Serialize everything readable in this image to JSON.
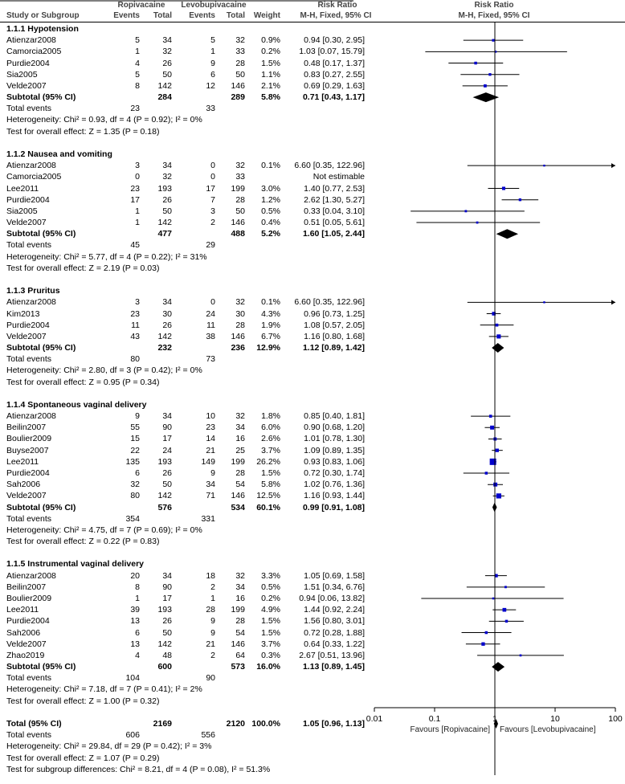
{
  "headers": {
    "group1": "Ropivacaine",
    "group2": "Levobupivacaine",
    "rr_title": "Risk Ratio",
    "plot_title": "Risk Ratio",
    "study": "Study or Subgroup",
    "events1": "Events",
    "total1": "Total",
    "events2": "Events",
    "total2": "Total",
    "weight": "Weight",
    "method": "M-H, Fixed, 95% CI",
    "plot_method": "M-H, Fixed, 95% CI"
  },
  "chart_data": {
    "type": "forest",
    "scale": "log",
    "xlim": [
      0.01,
      100
    ],
    "x_ticks": [
      "0.01",
      "0.1",
      "1",
      "10",
      "100"
    ],
    "x_tick_values": [
      0.01,
      0.1,
      1,
      10,
      100
    ],
    "favours_left": "Favours [Ropivacaine]",
    "favours_right": "Favours [Levobupivacaine]",
    "marker_color": "#0000cc",
    "rows": [
      {
        "kind": "group",
        "label": "1.1.1 Hypotension"
      },
      {
        "kind": "study",
        "label": "Atienzar2008",
        "e1": "5",
        "t1": "34",
        "e2": "5",
        "t2": "32",
        "w": "0.9%",
        "ci": "0.94 [0.30, 2.95]",
        "rr": 0.94,
        "lo": 0.3,
        "hi": 2.95
      },
      {
        "kind": "study",
        "label": "Camorcia2005",
        "e1": "1",
        "t1": "32",
        "e2": "1",
        "t2": "33",
        "w": "0.2%",
        "ci": "1.03 [0.07, 15.79]",
        "rr": 1.03,
        "lo": 0.07,
        "hi": 15.79
      },
      {
        "kind": "study",
        "label": "Purdie2004",
        "e1": "4",
        "t1": "26",
        "e2": "9",
        "t2": "28",
        "w": "1.5%",
        "ci": "0.48 [0.17, 1.37]",
        "rr": 0.48,
        "lo": 0.17,
        "hi": 1.37
      },
      {
        "kind": "study",
        "label": "Sia2005",
        "e1": "5",
        "t1": "50",
        "e2": "6",
        "t2": "50",
        "w": "1.1%",
        "ci": "0.83 [0.27, 2.55]",
        "rr": 0.83,
        "lo": 0.27,
        "hi": 2.55
      },
      {
        "kind": "study",
        "label": "Velde2007",
        "e1": "8",
        "t1": "142",
        "e2": "12",
        "t2": "146",
        "w": "2.1%",
        "ci": "0.69 [0.29, 1.63]",
        "rr": 0.69,
        "lo": 0.29,
        "hi": 1.63
      },
      {
        "kind": "subtotal",
        "label": "Subtotal (95% CI)",
        "t1": "284",
        "t2": "289",
        "w": "5.8%",
        "ci": "0.71 [0.43, 1.17]",
        "rr": 0.71,
        "lo": 0.43,
        "hi": 1.17
      },
      {
        "kind": "events",
        "label": "Total events",
        "e1": "23",
        "e2": "33"
      },
      {
        "kind": "text",
        "label": "Heterogeneity: Chi² = 0.93, df = 4 (P = 0.92); I² = 0%"
      },
      {
        "kind": "text",
        "label": "Test for overall effect: Z = 1.35 (P = 0.18)"
      },
      {
        "kind": "blank"
      },
      {
        "kind": "group",
        "label": "1.1.2 Nausea and vomiting"
      },
      {
        "kind": "study",
        "label": "Atienzar2008",
        "e1": "3",
        "t1": "34",
        "e2": "0",
        "t2": "32",
        "w": "0.1%",
        "ci": "6.60 [0.35, 122.96]",
        "rr": 6.6,
        "lo": 0.35,
        "hi": 122.96
      },
      {
        "kind": "study",
        "label": "Camorcia2005",
        "e1": "0",
        "t1": "32",
        "e2": "0",
        "t2": "33",
        "w": "",
        "ci": "Not estimable"
      },
      {
        "kind": "study",
        "label": "Lee2011",
        "e1": "23",
        "t1": "193",
        "e2": "17",
        "t2": "199",
        "w": "3.0%",
        "ci": "1.40 [0.77, 2.53]",
        "rr": 1.4,
        "lo": 0.77,
        "hi": 2.53
      },
      {
        "kind": "study",
        "label": "Purdie2004",
        "e1": "17",
        "t1": "26",
        "e2": "7",
        "t2": "28",
        "w": "1.2%",
        "ci": "2.62 [1.30, 5.27]",
        "rr": 2.62,
        "lo": 1.3,
        "hi": 5.27
      },
      {
        "kind": "study",
        "label": "Sia2005",
        "e1": "1",
        "t1": "50",
        "e2": "3",
        "t2": "50",
        "w": "0.5%",
        "ci": "0.33 [0.04, 3.10]",
        "rr": 0.33,
        "lo": 0.04,
        "hi": 3.1
      },
      {
        "kind": "study",
        "label": "Velde2007",
        "e1": "1",
        "t1": "142",
        "e2": "2",
        "t2": "146",
        "w": "0.4%",
        "ci": "0.51 [0.05, 5.61]",
        "rr": 0.51,
        "lo": 0.05,
        "hi": 5.61
      },
      {
        "kind": "subtotal",
        "label": "Subtotal (95% CI)",
        "t1": "477",
        "t2": "488",
        "w": "5.2%",
        "ci": "1.60 [1.05, 2.44]",
        "rr": 1.6,
        "lo": 1.05,
        "hi": 2.44
      },
      {
        "kind": "events",
        "label": "Total events",
        "e1": "45",
        "e2": "29"
      },
      {
        "kind": "text",
        "label": "Heterogeneity: Chi² = 5.77, df = 4 (P = 0.22); I² = 31%"
      },
      {
        "kind": "text",
        "label": "Test for overall effect: Z = 2.19 (P = 0.03)"
      },
      {
        "kind": "blank"
      },
      {
        "kind": "group",
        "label": "1.1.3 Pruritus"
      },
      {
        "kind": "study",
        "label": "Atienzar2008",
        "e1": "3",
        "t1": "34",
        "e2": "0",
        "t2": "32",
        "w": "0.1%",
        "ci": "6.60 [0.35, 122.96]",
        "rr": 6.6,
        "lo": 0.35,
        "hi": 122.96
      },
      {
        "kind": "study",
        "label": "Kim2013",
        "e1": "23",
        "t1": "30",
        "e2": "24",
        "t2": "30",
        "w": "4.3%",
        "ci": "0.96 [0.73, 1.25]",
        "rr": 0.96,
        "lo": 0.73,
        "hi": 1.25
      },
      {
        "kind": "study",
        "label": "Purdie2004",
        "e1": "11",
        "t1": "26",
        "e2": "11",
        "t2": "28",
        "w": "1.9%",
        "ci": "1.08 [0.57, 2.05]",
        "rr": 1.08,
        "lo": 0.57,
        "hi": 2.05
      },
      {
        "kind": "study",
        "label": "Velde2007",
        "e1": "43",
        "t1": "142",
        "e2": "38",
        "t2": "146",
        "w": "6.7%",
        "ci": "1.16 [0.80, 1.68]",
        "rr": 1.16,
        "lo": 0.8,
        "hi": 1.68
      },
      {
        "kind": "subtotal",
        "label": "Subtotal (95% CI)",
        "t1": "232",
        "t2": "236",
        "w": "12.9%",
        "ci": "1.12 [0.89, 1.42]",
        "rr": 1.12,
        "lo": 0.89,
        "hi": 1.42
      },
      {
        "kind": "events",
        "label": "Total events",
        "e1": "80",
        "e2": "73"
      },
      {
        "kind": "text",
        "label": "Heterogeneity: Chi² = 2.80, df = 3 (P = 0.42); I² = 0%"
      },
      {
        "kind": "text",
        "label": "Test for overall effect: Z = 0.95 (P = 0.34)"
      },
      {
        "kind": "blank"
      },
      {
        "kind": "group",
        "label": "1.1.4 Spontaneous vaginal delivery"
      },
      {
        "kind": "study",
        "label": "Atienzar2008",
        "e1": "9",
        "t1": "34",
        "e2": "10",
        "t2": "32",
        "w": "1.8%",
        "ci": "0.85 [0.40, 1.81]",
        "rr": 0.85,
        "lo": 0.4,
        "hi": 1.81
      },
      {
        "kind": "study",
        "label": "Beilin2007",
        "e1": "55",
        "t1": "90",
        "e2": "23",
        "t2": "34",
        "w": "6.0%",
        "ci": "0.90 [0.68, 1.20]",
        "rr": 0.9,
        "lo": 0.68,
        "hi": 1.2
      },
      {
        "kind": "study",
        "label": "Boulier2009",
        "e1": "15",
        "t1": "17",
        "e2": "14",
        "t2": "16",
        "w": "2.6%",
        "ci": "1.01 [0.78, 1.30]",
        "rr": 1.01,
        "lo": 0.78,
        "hi": 1.3
      },
      {
        "kind": "study",
        "label": "Buyse2007",
        "e1": "22",
        "t1": "24",
        "e2": "21",
        "t2": "25",
        "w": "3.7%",
        "ci": "1.09 [0.89, 1.35]",
        "rr": 1.09,
        "lo": 0.89,
        "hi": 1.35
      },
      {
        "kind": "study",
        "label": "Lee2011",
        "e1": "135",
        "t1": "193",
        "e2": "149",
        "t2": "199",
        "w": "26.2%",
        "ci": "0.93 [0.83, 1.06]",
        "rr": 0.93,
        "lo": 0.83,
        "hi": 1.06
      },
      {
        "kind": "study",
        "label": "Purdie2004",
        "e1": "6",
        "t1": "26",
        "e2": "9",
        "t2": "28",
        "w": "1.5%",
        "ci": "0.72 [0.30, 1.74]",
        "rr": 0.72,
        "lo": 0.3,
        "hi": 1.74
      },
      {
        "kind": "study",
        "label": "Sah2006",
        "e1": "32",
        "t1": "50",
        "e2": "34",
        "t2": "54",
        "w": "5.8%",
        "ci": "1.02 [0.76, 1.36]",
        "rr": 1.02,
        "lo": 0.76,
        "hi": 1.36
      },
      {
        "kind": "study",
        "label": "Velde2007",
        "e1": "80",
        "t1": "142",
        "e2": "71",
        "t2": "146",
        "w": "12.5%",
        "ci": "1.16 [0.93, 1.44]",
        "rr": 1.16,
        "lo": 0.93,
        "hi": 1.44
      },
      {
        "kind": "subtotal",
        "label": "Subtotal (95% CI)",
        "t1": "576",
        "t2": "534",
        "w": "60.1%",
        "ci": "0.99 [0.91, 1.08]",
        "rr": 0.99,
        "lo": 0.91,
        "hi": 1.08
      },
      {
        "kind": "events",
        "label": "Total events",
        "e1": "354",
        "e2": "331"
      },
      {
        "kind": "text",
        "label": "Heterogeneity: Chi² = 4.75, df = 7 (P = 0.69); I² = 0%"
      },
      {
        "kind": "text",
        "label": "Test for overall effect: Z = 0.22 (P = 0.83)"
      },
      {
        "kind": "blank"
      },
      {
        "kind": "group",
        "label": "1.1.5 Instrumental vaginal delivery"
      },
      {
        "kind": "study",
        "label": "Atienzar2008",
        "e1": "20",
        "t1": "34",
        "e2": "18",
        "t2": "32",
        "w": "3.3%",
        "ci": "1.05 [0.69, 1.58]",
        "rr": 1.05,
        "lo": 0.69,
        "hi": 1.58
      },
      {
        "kind": "study",
        "label": "Beilin2007",
        "e1": "8",
        "t1": "90",
        "e2": "2",
        "t2": "34",
        "w": "0.5%",
        "ci": "1.51 [0.34, 6.76]",
        "rr": 1.51,
        "lo": 0.34,
        "hi": 6.76
      },
      {
        "kind": "study",
        "label": "Boulier2009",
        "e1": "1",
        "t1": "17",
        "e2": "1",
        "t2": "16",
        "w": "0.2%",
        "ci": "0.94 [0.06, 13.82]",
        "rr": 0.94,
        "lo": 0.06,
        "hi": 13.82
      },
      {
        "kind": "study",
        "label": "Lee2011",
        "e1": "39",
        "t1": "193",
        "e2": "28",
        "t2": "199",
        "w": "4.9%",
        "ci": "1.44 [0.92, 2.24]",
        "rr": 1.44,
        "lo": 0.92,
        "hi": 2.24
      },
      {
        "kind": "study",
        "label": "Purdie2004",
        "e1": "13",
        "t1": "26",
        "e2": "9",
        "t2": "28",
        "w": "1.5%",
        "ci": "1.56 [0.80, 3.01]",
        "rr": 1.56,
        "lo": 0.8,
        "hi": 3.01
      },
      {
        "kind": "study",
        "label": "Sah2006",
        "e1": "6",
        "t1": "50",
        "e2": "9",
        "t2": "54",
        "w": "1.5%",
        "ci": "0.72 [0.28, 1.88]",
        "rr": 0.72,
        "lo": 0.28,
        "hi": 1.88
      },
      {
        "kind": "study",
        "label": "Velde2007",
        "e1": "13",
        "t1": "142",
        "e2": "21",
        "t2": "146",
        "w": "3.7%",
        "ci": "0.64 [0.33, 1.22]",
        "rr": 0.64,
        "lo": 0.33,
        "hi": 1.22
      },
      {
        "kind": "study",
        "label": "Zhao2019",
        "e1": "4",
        "t1": "48",
        "e2": "2",
        "t2": "64",
        "w": "0.3%",
        "ci": "2.67 [0.51, 13.96]",
        "rr": 2.67,
        "lo": 0.51,
        "hi": 13.96
      },
      {
        "kind": "subtotal",
        "label": "Subtotal (95% CI)",
        "t1": "600",
        "t2": "573",
        "w": "16.0%",
        "ci": "1.13 [0.89, 1.45]",
        "rr": 1.13,
        "lo": 0.89,
        "hi": 1.45
      },
      {
        "kind": "events",
        "label": "Total events",
        "e1": "104",
        "e2": "90"
      },
      {
        "kind": "text",
        "label": "Heterogeneity: Chi² = 7.18, df = 7 (P = 0.41); I² = 2%"
      },
      {
        "kind": "text",
        "label": "Test for overall effect: Z = 1.00 (P = 0.32)"
      },
      {
        "kind": "blank"
      },
      {
        "kind": "total",
        "label": "Total (95% CI)",
        "t1": "2169",
        "t2": "2120",
        "w": "100.0%",
        "ci": "1.05 [0.96, 1.13]",
        "rr": 1.05,
        "lo": 0.96,
        "hi": 1.13
      },
      {
        "kind": "events",
        "label": "Total events",
        "e1": "606",
        "e2": "556"
      },
      {
        "kind": "text",
        "label": "Heterogeneity: Chi² = 29.84, df = 29 (P = 0.42); I² = 3%"
      },
      {
        "kind": "text",
        "label": "Test for overall effect: Z = 1.07 (P = 0.29)"
      },
      {
        "kind": "text",
        "label": "Test for subgroup differences: Chi² = 8.21, df = 4 (P = 0.08), I² = 51.3%"
      }
    ]
  }
}
